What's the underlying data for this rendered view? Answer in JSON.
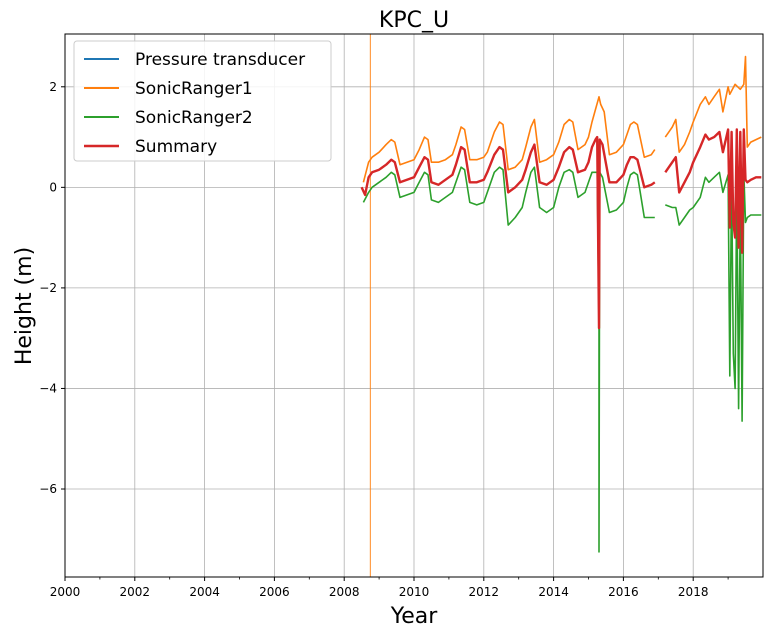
{
  "chart_data": {
    "type": "line",
    "title": "KPC_U",
    "xlabel": "Year",
    "ylabel": "Height (m)",
    "xlim": [
      2000,
      2020
    ],
    "ylim": [
      -7.75,
      3.05
    ],
    "grid": true,
    "legend_position": "top-left",
    "x_ticks": [
      2000,
      2002,
      2004,
      2006,
      2008,
      2010,
      2012,
      2014,
      2016,
      2018
    ],
    "y_ticks": [
      2,
      0,
      -2,
      -4,
      -6
    ],
    "y_tick_labels": [
      "2",
      "0",
      "−2",
      "−4",
      "−6"
    ],
    "series": [
      {
        "name": "Pressure transducer",
        "color": "#1f77b4",
        "x": [],
        "y": []
      },
      {
        "name": "SonicRanger1",
        "color": "#ff7f0e",
        "segments": [
          {
            "x": [
              2008.55,
              2008.7,
              2008.8,
              2009.0,
              2009.2,
              2009.35,
              2009.45,
              2009.6,
              2009.8,
              2010.0,
              2010.15,
              2010.3,
              2010.4,
              2010.5,
              2010.7,
              2010.9,
              2011.1,
              2011.2,
              2011.35,
              2011.45,
              2011.6,
              2011.8,
              2012.0,
              2012.1,
              2012.3,
              2012.45,
              2012.55,
              2012.7,
              2012.9,
              2013.1,
              2013.2,
              2013.35,
              2013.45,
              2013.6,
              2013.8,
              2014.0,
              2014.15,
              2014.3,
              2014.45,
              2014.55,
              2014.7,
              2014.9,
              2015.0,
              2015.1,
              2015.2,
              2015.3,
              2015.35,
              2015.45,
              2015.6,
              2015.8,
              2016.0,
              2016.1,
              2016.2,
              2016.3,
              2016.4,
              2016.6,
              2016.8,
              2016.9
            ],
            "y": [
              0.1,
              0.5,
              0.6,
              0.7,
              0.85,
              0.95,
              0.9,
              0.45,
              0.5,
              0.55,
              0.75,
              1.0,
              0.95,
              0.5,
              0.5,
              0.55,
              0.65,
              0.85,
              1.2,
              1.15,
              0.55,
              0.55,
              0.6,
              0.7,
              1.1,
              1.3,
              1.25,
              0.35,
              0.4,
              0.55,
              0.8,
              1.2,
              1.35,
              0.5,
              0.55,
              0.65,
              0.9,
              1.25,
              1.35,
              1.3,
              0.75,
              0.85,
              1.0,
              1.3,
              1.55,
              1.8,
              1.65,
              1.5,
              0.65,
              0.7,
              0.85,
              1.05,
              1.25,
              1.3,
              1.25,
              0.6,
              0.65,
              0.75
            ]
          },
          {
            "x": [
              2017.2,
              2017.4,
              2017.5,
              2017.6,
              2017.75,
              2017.9,
              2018.0,
              2018.2,
              2018.35,
              2018.45,
              2018.6,
              2018.75,
              2018.85,
              2019.0,
              2019.05,
              2019.2,
              2019.35,
              2019.45,
              2019.5,
              2019.55,
              2019.65,
              2019.8,
              2019.95
            ],
            "y": [
              1.0,
              1.2,
              1.35,
              0.7,
              0.85,
              1.1,
              1.3,
              1.65,
              1.8,
              1.65,
              1.8,
              1.95,
              1.5,
              2.0,
              1.85,
              2.05,
              1.95,
              2.05,
              2.6,
              0.8,
              0.9,
              0.95,
              1.0
            ]
          },
          {
            "x": [
              2008.75,
              2008.75
            ],
            "y": [
              -7.75,
              3.05
            ]
          }
        ]
      },
      {
        "name": "SonicRanger2",
        "color": "#2ca02c",
        "segments": [
          {
            "x": [
              2008.55,
              2008.7,
              2008.8,
              2009.0,
              2009.2,
              2009.35,
              2009.45,
              2009.6,
              2009.8,
              2010.0,
              2010.15,
              2010.3,
              2010.4,
              2010.5,
              2010.7,
              2010.9,
              2011.1,
              2011.2,
              2011.35,
              2011.45,
              2011.6,
              2011.8,
              2012.0,
              2012.1,
              2012.3,
              2012.45,
              2012.55,
              2012.7,
              2012.9,
              2013.1,
              2013.2,
              2013.35,
              2013.45,
              2013.6,
              2013.8,
              2014.0,
              2014.15,
              2014.3,
              2014.45,
              2014.55,
              2014.7,
              2014.9,
              2015.0,
              2015.1,
              2015.2,
              2015.25,
              2015.3,
              2015.3,
              2015.32,
              2015.4,
              2015.6,
              2015.8,
              2016.0,
              2016.1,
              2016.2,
              2016.3,
              2016.4,
              2016.6,
              2016.8,
              2016.9
            ],
            "y": [
              -0.3,
              -0.1,
              0.0,
              0.1,
              0.2,
              0.3,
              0.25,
              -0.2,
              -0.15,
              -0.1,
              0.1,
              0.3,
              0.25,
              -0.25,
              -0.3,
              -0.2,
              -0.1,
              0.1,
              0.4,
              0.35,
              -0.3,
              -0.35,
              -0.3,
              -0.1,
              0.3,
              0.4,
              0.35,
              -0.75,
              -0.6,
              -0.4,
              -0.1,
              0.3,
              0.4,
              -0.4,
              -0.5,
              -0.4,
              0.0,
              0.3,
              0.35,
              0.3,
              -0.2,
              -0.1,
              0.1,
              0.3,
              0.3,
              0.3,
              -2.8,
              -7.25,
              0.3,
              0.2,
              -0.5,
              -0.45,
              -0.3,
              0.0,
              0.25,
              0.3,
              0.25,
              -0.6,
              -0.6,
              -0.6
            ]
          },
          {
            "x": [
              2017.2,
              2017.4,
              2017.5,
              2017.6,
              2017.75,
              2017.9,
              2018.0,
              2018.2,
              2018.35,
              2018.45,
              2018.6,
              2018.75,
              2018.85,
              2019.0,
              2019.05,
              2019.1,
              2019.15,
              2019.2,
              2019.25,
              2019.3,
              2019.35,
              2019.4,
              2019.45,
              2019.5,
              2019.55,
              2019.65,
              2019.8,
              2019.95
            ],
            "y": [
              -0.35,
              -0.4,
              -0.4,
              -0.75,
              -0.6,
              -0.45,
              -0.4,
              -0.2,
              0.2,
              0.1,
              0.2,
              0.3,
              -0.1,
              0.25,
              -3.75,
              0.2,
              -3.3,
              -4.0,
              0.2,
              -4.4,
              -0.3,
              -4.65,
              0.3,
              -0.7,
              -0.6,
              -0.55,
              -0.55,
              -0.55
            ]
          }
        ]
      },
      {
        "name": "Summary",
        "color": "#d62728",
        "segments": [
          {
            "x": [
              2008.5,
              2008.6,
              2008.7,
              2008.8,
              2009.0,
              2009.2,
              2009.35,
              2009.45,
              2009.6,
              2009.8,
              2010.0,
              2010.15,
              2010.3,
              2010.4,
              2010.5,
              2010.7,
              2010.9,
              2011.1,
              2011.2,
              2011.35,
              2011.45,
              2011.6,
              2011.8,
              2012.0,
              2012.1,
              2012.3,
              2012.45,
              2012.55,
              2012.7,
              2012.9,
              2013.1,
              2013.2,
              2013.35,
              2013.45,
              2013.6,
              2013.8,
              2014.0,
              2014.15,
              2014.3,
              2014.45,
              2014.55,
              2014.7,
              2014.9,
              2015.0,
              2015.1,
              2015.2,
              2015.25,
              2015.3,
              2015.32,
              2015.4,
              2015.6,
              2015.8,
              2016.0,
              2016.1,
              2016.2,
              2016.3,
              2016.4,
              2016.6,
              2016.8,
              2016.9
            ],
            "y": [
              0.0,
              -0.15,
              0.2,
              0.3,
              0.35,
              0.45,
              0.55,
              0.5,
              0.1,
              0.15,
              0.2,
              0.4,
              0.6,
              0.55,
              0.1,
              0.05,
              0.15,
              0.25,
              0.45,
              0.8,
              0.75,
              0.1,
              0.1,
              0.15,
              0.3,
              0.65,
              0.8,
              0.75,
              -0.1,
              0.0,
              0.15,
              0.35,
              0.7,
              0.85,
              0.1,
              0.05,
              0.15,
              0.4,
              0.7,
              0.8,
              0.75,
              0.3,
              0.35,
              0.5,
              0.8,
              0.95,
              1.0,
              -2.8,
              0.95,
              0.85,
              0.1,
              0.1,
              0.25,
              0.45,
              0.6,
              0.6,
              0.55,
              0.0,
              0.05,
              0.1
            ]
          },
          {
            "x": [
              2017.2,
              2017.4,
              2017.5,
              2017.6,
              2017.75,
              2017.9,
              2018.0,
              2018.2,
              2018.35,
              2018.45,
              2018.6,
              2018.75,
              2018.85,
              2019.0,
              2019.05,
              2019.1,
              2019.15,
              2019.2,
              2019.25,
              2019.3,
              2019.35,
              2019.4,
              2019.45,
              2019.5,
              2019.55,
              2019.65,
              2019.8,
              2019.95
            ],
            "y": [
              0.3,
              0.5,
              0.6,
              -0.1,
              0.1,
              0.3,
              0.5,
              0.8,
              1.05,
              0.95,
              1.0,
              1.1,
              0.7,
              1.15,
              -0.8,
              1.1,
              -0.7,
              -1.0,
              1.15,
              -1.2,
              1.1,
              -1.3,
              1.15,
              0.15,
              0.1,
              0.15,
              0.2,
              0.2
            ]
          }
        ]
      }
    ]
  }
}
